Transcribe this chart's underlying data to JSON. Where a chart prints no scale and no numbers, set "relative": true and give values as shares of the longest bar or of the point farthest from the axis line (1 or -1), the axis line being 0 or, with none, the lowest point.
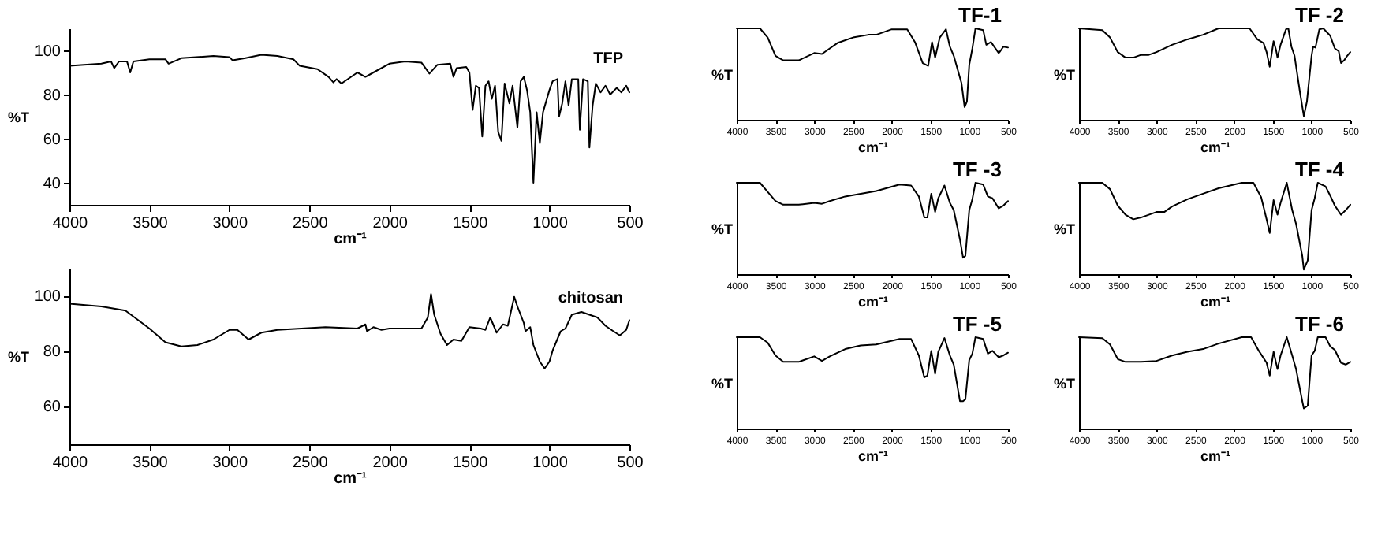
{
  "chart_data": [
    {
      "type": "line",
      "xlabel": "cm⁻¹",
      "ylabel": "%T",
      "xlim": [
        4000,
        500
      ],
      "xticks": [
        4000,
        3500,
        3000,
        2500,
        2000,
        1500,
        1000,
        500
      ],
      "ylim": [
        30,
        110
      ],
      "yticks": [
        40,
        60,
        80,
        100
      ],
      "x": [
        4000,
        3800,
        3740,
        3720,
        3690,
        3640,
        3620,
        3600,
        3500,
        3400,
        3380,
        3300,
        3100,
        3000,
        2980,
        2900,
        2800,
        2700,
        2600,
        2560,
        2450,
        2380,
        2350,
        2330,
        2300,
        2200,
        2150,
        2100,
        2000,
        1900,
        1800,
        1750,
        1700,
        1620,
        1600,
        1580,
        1520,
        1500,
        1480,
        1460,
        1440,
        1420,
        1400,
        1380,
        1360,
        1340,
        1320,
        1300,
        1280,
        1250,
        1230,
        1200,
        1180,
        1160,
        1140,
        1120,
        1100,
        1080,
        1060,
        1040,
        1000,
        980,
        950,
        940,
        920,
        900,
        880,
        860,
        820,
        810,
        790,
        760,
        750,
        730,
        710,
        680,
        650,
        620,
        580,
        550,
        520,
        500
      ],
      "series": [
        {
          "name": "TFP",
          "color": "#000000",
          "values": [
            93,
            94,
            95,
            92,
            95,
            95,
            90,
            95,
            96,
            96,
            94,
            96.5,
            97.5,
            97,
            95.5,
            96.5,
            98,
            97.5,
            96,
            93,
            91.5,
            88,
            85.5,
            87,
            85,
            90,
            88,
            90,
            94,
            95,
            94.5,
            89.5,
            93.5,
            94,
            88,
            92,
            92.5,
            90,
            73,
            84,
            83,
            61,
            84,
            86,
            78,
            84,
            63,
            59,
            85,
            76,
            84,
            65,
            86,
            88,
            82,
            72,
            40,
            72,
            58,
            72,
            82,
            86,
            87,
            70,
            76,
            86,
            75,
            87,
            87,
            64,
            87,
            86,
            56,
            75,
            85,
            81,
            84,
            80,
            83,
            81,
            84,
            81
          ]
        }
      ]
    },
    {
      "type": "line",
      "xlabel": "cm⁻¹",
      "ylabel": "%T",
      "xlim": [
        4000,
        500
      ],
      "xticks": [
        4000,
        3500,
        3000,
        2500,
        2000,
        1500,
        1000,
        500
      ],
      "ylim": [
        46,
        110
      ],
      "yticks": [
        60,
        80,
        100
      ],
      "x": [
        4000,
        3800,
        3650,
        3500,
        3400,
        3300,
        3200,
        3100,
        3000,
        2950,
        2880,
        2800,
        2700,
        2400,
        2200,
        2150,
        2140,
        2100,
        2050,
        2000,
        1800,
        1760,
        1740,
        1720,
        1680,
        1640,
        1600,
        1550,
        1500,
        1430,
        1400,
        1370,
        1330,
        1290,
        1260,
        1220,
        1200,
        1160,
        1150,
        1120,
        1100,
        1060,
        1030,
        1000,
        980,
        930,
        900,
        860,
        800,
        750,
        700,
        650,
        600,
        560,
        520,
        500
      ],
      "series": [
        {
          "name": "chitosan",
          "color": "#000000",
          "values": [
            97,
            96,
            94.5,
            88,
            83,
            81.5,
            82,
            84,
            87.5,
            87.5,
            84,
            86.5,
            87.5,
            88.5,
            88,
            89.5,
            87,
            88.5,
            87.5,
            88,
            88,
            92,
            100.5,
            93,
            86,
            82,
            84,
            83.5,
            88.5,
            88,
            87.5,
            92,
            86.5,
            89.5,
            89,
            99.5,
            96,
            90,
            87,
            88.5,
            82,
            76,
            73.5,
            76,
            80,
            87,
            88,
            93,
            94,
            93,
            92,
            89,
            87,
            85.5,
            87.5,
            91
          ]
        }
      ]
    },
    {
      "type": "line",
      "relative": true,
      "xlabel": "cm⁻¹",
      "ylabel": "%T",
      "xlim": [
        4000,
        500
      ],
      "xticks": [
        4000,
        3500,
        3000,
        2500,
        2000,
        1500,
        1000,
        500
      ],
      "x": [
        4000,
        3700,
        3600,
        3500,
        3400,
        3200,
        3000,
        2900,
        2800,
        2700,
        2500,
        2300,
        2200,
        2000,
        1800,
        1700,
        1600,
        1530,
        1480,
        1440,
        1380,
        1300,
        1250,
        1200,
        1100,
        1060,
        1030,
        1000,
        960,
        920,
        820,
        780,
        720,
        620,
        600,
        560,
        500
      ],
      "series": [
        {
          "name": "TF-1",
          "color": "#000000",
          "values": [
            1,
            1,
            0.9,
            0.7,
            0.65,
            0.65,
            0.73,
            0.72,
            0.78,
            0.84,
            0.9,
            0.93,
            0.93,
            0.99,
            0.99,
            0.85,
            0.62,
            0.59,
            0.85,
            0.68,
            0.9,
            0.99,
            0.8,
            0.7,
            0.4,
            0.14,
            0.2,
            0.6,
            0.78,
            1,
            0.98,
            0.82,
            0.85,
            0.73,
            0.75,
            0.8,
            0.79
          ]
        }
      ]
    },
    {
      "type": "line",
      "relative": true,
      "xlabel": "cm⁻¹",
      "ylabel": "%T",
      "xlim": [
        4000,
        500
      ],
      "xticks": [
        4000,
        3500,
        3000,
        2500,
        2000,
        1500,
        1000,
        500
      ],
      "x": [
        4000,
        3700,
        3600,
        3500,
        3400,
        3300,
        3200,
        3100,
        3000,
        2800,
        2600,
        2400,
        2200,
        1800,
        1700,
        1620,
        1580,
        1540,
        1490,
        1460,
        1440,
        1400,
        1330,
        1300,
        1260,
        1220,
        1150,
        1100,
        1060,
        1000,
        980,
        950,
        900,
        850,
        760,
        700,
        650,
        620,
        580,
        540,
        500
      ],
      "series": [
        {
          "name": "TF -2",
          "color": "#000000",
          "values": [
            1,
            0.98,
            0.9,
            0.74,
            0.68,
            0.68,
            0.71,
            0.71,
            0.74,
            0.82,
            0.88,
            0.93,
            1,
            1,
            0.88,
            0.84,
            0.74,
            0.58,
            0.86,
            0.77,
            0.68,
            0.82,
            0.99,
            1,
            0.8,
            0.7,
            0.3,
            0.04,
            0.2,
            0.7,
            0.8,
            0.79,
            0.99,
            1,
            0.92,
            0.78,
            0.75,
            0.62,
            0.65,
            0.7,
            0.74
          ]
        }
      ]
    },
    {
      "type": "line",
      "relative": true,
      "xlabel": "cm⁻¹",
      "ylabel": "%T",
      "xlim": [
        4000,
        500
      ],
      "xticks": [
        4000,
        3500,
        3000,
        2500,
        2000,
        1500,
        1000,
        500
      ],
      "x": [
        4000,
        3700,
        3600,
        3500,
        3400,
        3200,
        3000,
        2900,
        2800,
        2600,
        2400,
        2200,
        1900,
        1750,
        1650,
        1580,
        1540,
        1490,
        1440,
        1400,
        1320,
        1250,
        1200,
        1120,
        1080,
        1050,
        1000,
        960,
        920,
        820,
        760,
        700,
        620,
        560,
        500
      ],
      "series": [
        {
          "name": "TF -3",
          "color": "#000000",
          "values": [
            1,
            1,
            0.9,
            0.8,
            0.76,
            0.76,
            0.78,
            0.77,
            0.8,
            0.85,
            0.88,
            0.91,
            0.98,
            0.97,
            0.85,
            0.62,
            0.62,
            0.88,
            0.68,
            0.83,
            0.97,
            0.78,
            0.7,
            0.38,
            0.18,
            0.2,
            0.7,
            0.82,
            1,
            0.98,
            0.85,
            0.83,
            0.72,
            0.75,
            0.8
          ]
        }
      ]
    },
    {
      "type": "line",
      "relative": true,
      "xlabel": "cm⁻¹",
      "ylabel": "%T",
      "xlim": [
        4000,
        500
      ],
      "xticks": [
        4000,
        3500,
        3000,
        2500,
        2000,
        1500,
        1000,
        500
      ],
      "x": [
        4000,
        3700,
        3600,
        3500,
        3400,
        3300,
        3200,
        3000,
        2900,
        2800,
        2600,
        2400,
        2200,
        1900,
        1750,
        1650,
        1580,
        1540,
        1490,
        1440,
        1400,
        1320,
        1250,
        1200,
        1120,
        1100,
        1050,
        1000,
        960,
        920,
        820,
        760,
        700,
        620,
        560,
        500
      ],
      "series": [
        {
          "name": "TF -4",
          "color": "#000000",
          "values": [
            1,
            1,
            0.93,
            0.75,
            0.65,
            0.6,
            0.62,
            0.68,
            0.68,
            0.74,
            0.82,
            0.88,
            0.94,
            1,
            1,
            0.84,
            0.6,
            0.45,
            0.81,
            0.65,
            0.78,
            1,
            0.7,
            0.55,
            0.2,
            0.05,
            0.15,
            0.7,
            0.83,
            1,
            0.96,
            0.86,
            0.75,
            0.65,
            0.7,
            0.76
          ]
        }
      ]
    },
    {
      "type": "line",
      "relative": true,
      "xlabel": "cm⁻¹",
      "ylabel": "%T",
      "xlim": [
        4000,
        500
      ],
      "xticks": [
        4000,
        3500,
        3000,
        2500,
        2000,
        1500,
        1000,
        500
      ],
      "x": [
        4000,
        3700,
        3600,
        3500,
        3400,
        3200,
        3000,
        2900,
        2800,
        2600,
        2400,
        2200,
        1900,
        1750,
        1650,
        1580,
        1540,
        1490,
        1440,
        1400,
        1320,
        1250,
        1200,
        1120,
        1080,
        1050,
        1000,
        960,
        920,
        820,
        760,
        700,
        620,
        560,
        500
      ],
      "series": [
        {
          "name": "TF -5",
          "color": "#000000",
          "values": [
            1,
            1,
            0.94,
            0.8,
            0.73,
            0.73,
            0.79,
            0.74,
            0.79,
            0.87,
            0.91,
            0.92,
            0.98,
            0.98,
            0.8,
            0.56,
            0.58,
            0.85,
            0.6,
            0.84,
            0.99,
            0.8,
            0.7,
            0.3,
            0.3,
            0.32,
            0.75,
            0.82,
            1,
            0.98,
            0.82,
            0.85,
            0.78,
            0.8,
            0.83
          ]
        }
      ]
    },
    {
      "type": "line",
      "relative": true,
      "xlabel": "cm⁻¹",
      "ylabel": "%T",
      "xlim": [
        4000,
        500
      ],
      "xticks": [
        4000,
        3500,
        3000,
        2500,
        2000,
        1500,
        1000,
        500
      ],
      "x": [
        4000,
        3700,
        3600,
        3500,
        3400,
        3200,
        3000,
        2800,
        2600,
        2400,
        2200,
        1900,
        1780,
        1680,
        1580,
        1540,
        1490,
        1440,
        1400,
        1320,
        1250,
        1200,
        1120,
        1100,
        1050,
        1000,
        960,
        920,
        820,
        760,
        700,
        620,
        560,
        500
      ],
      "series": [
        {
          "name": "TF -6",
          "color": "#000000",
          "values": [
            1,
            0.99,
            0.92,
            0.76,
            0.73,
            0.73,
            0.74,
            0.8,
            0.84,
            0.87,
            0.93,
            1,
            1,
            0.85,
            0.72,
            0.58,
            0.84,
            0.65,
            0.8,
            1,
            0.8,
            0.65,
            0.3,
            0.22,
            0.25,
            0.8,
            0.85,
            1,
            1,
            0.9,
            0.86,
            0.72,
            0.7,
            0.73
          ]
        }
      ]
    }
  ]
}
